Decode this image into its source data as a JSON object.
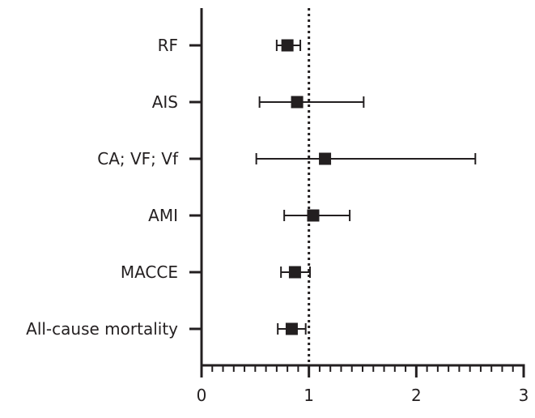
{
  "chart_data": {
    "type": "forest",
    "title": "",
    "xlabel": "",
    "ylabel": "",
    "xlim": [
      0,
      3
    ],
    "xticks_major": [
      0,
      1,
      2,
      3
    ],
    "xtick_labels": [
      "0",
      "1",
      "2",
      "3"
    ],
    "minor_ticks_per_unit": 10,
    "reference_line": 1,
    "categories": [
      "RF",
      "AIS",
      "CA; VF; Vf",
      "AMI",
      "MACCE",
      "All-cause mortality"
    ],
    "estimates": [
      0.8,
      0.89,
      1.15,
      1.04,
      0.87,
      0.84
    ],
    "ci_lower": [
      0.7,
      0.54,
      0.51,
      0.77,
      0.74,
      0.71
    ],
    "ci_upper": [
      0.92,
      1.51,
      2.55,
      1.38,
      1.01,
      0.97
    ],
    "colors": {
      "ink": "#231f20"
    }
  }
}
